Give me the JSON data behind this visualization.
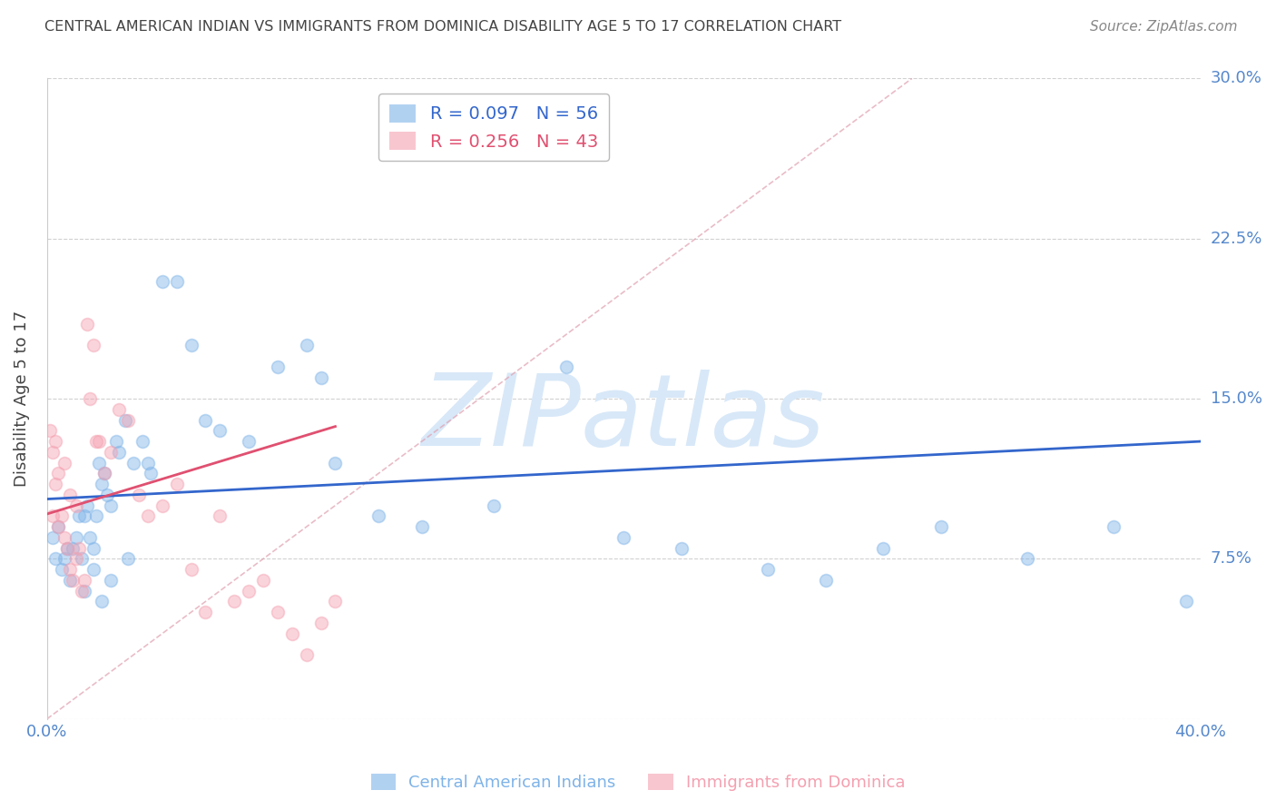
{
  "title": "CENTRAL AMERICAN INDIAN VS IMMIGRANTS FROM DOMINICA DISABILITY AGE 5 TO 17 CORRELATION CHART",
  "source": "Source: ZipAtlas.com",
  "ylabel": "Disability Age 5 to 17",
  "xmin": 0.0,
  "xmax": 0.4,
  "ymin": 0.0,
  "ymax": 0.3,
  "yticks": [
    0.0,
    0.075,
    0.15,
    0.225,
    0.3
  ],
  "ytick_labels": [
    "",
    "7.5%",
    "15.0%",
    "22.5%",
    "30.0%"
  ],
  "series1_name": "Central American Indians",
  "series1_color": "#7EB3E8",
  "series1_R": 0.097,
  "series1_N": 56,
  "series2_name": "Immigrants from Dominica",
  "series2_color": "#F4A0B0",
  "series2_R": 0.256,
  "series2_N": 43,
  "blue_line_color": "#3366CC",
  "pink_line_color": "#E05070",
  "diag_color": "#E0A0B0",
  "grid_color": "#CCCCCC",
  "background_color": "#FFFFFF",
  "watermark": "ZIPatlas",
  "watermark_color": "#D8E8F8",
  "title_color": "#444444",
  "axis_label_color": "#5588CC",
  "blue_trend_x0": 0.0,
  "blue_trend_x1": 0.4,
  "blue_trend_y0": 0.103,
  "blue_trend_y1": 0.13,
  "pink_trend_x0": 0.0,
  "pink_trend_x1": 0.1,
  "pink_trend_y0": 0.096,
  "pink_trend_y1": 0.137,
  "series1_x": [
    0.002,
    0.003,
    0.004,
    0.005,
    0.006,
    0.007,
    0.008,
    0.009,
    0.01,
    0.011,
    0.012,
    0.013,
    0.014,
    0.015,
    0.016,
    0.017,
    0.018,
    0.019,
    0.02,
    0.021,
    0.022,
    0.024,
    0.025,
    0.027,
    0.03,
    0.033,
    0.036,
    0.04,
    0.045,
    0.05,
    0.055,
    0.06,
    0.07,
    0.08,
    0.09,
    0.095,
    0.1,
    0.115,
    0.13,
    0.155,
    0.18,
    0.2,
    0.22,
    0.25,
    0.27,
    0.29,
    0.31,
    0.34,
    0.37,
    0.395,
    0.013,
    0.016,
    0.019,
    0.022,
    0.028,
    0.035
  ],
  "series1_y": [
    0.085,
    0.075,
    0.09,
    0.07,
    0.075,
    0.08,
    0.065,
    0.08,
    0.085,
    0.095,
    0.075,
    0.095,
    0.1,
    0.085,
    0.08,
    0.095,
    0.12,
    0.11,
    0.115,
    0.105,
    0.1,
    0.13,
    0.125,
    0.14,
    0.12,
    0.13,
    0.115,
    0.205,
    0.205,
    0.175,
    0.14,
    0.135,
    0.13,
    0.165,
    0.175,
    0.16,
    0.12,
    0.095,
    0.09,
    0.1,
    0.165,
    0.085,
    0.08,
    0.07,
    0.065,
    0.08,
    0.09,
    0.075,
    0.09,
    0.055,
    0.06,
    0.07,
    0.055,
    0.065,
    0.075,
    0.12
  ],
  "series2_x": [
    0.001,
    0.002,
    0.003,
    0.003,
    0.004,
    0.005,
    0.006,
    0.007,
    0.008,
    0.009,
    0.01,
    0.011,
    0.012,
    0.013,
    0.014,
    0.015,
    0.016,
    0.017,
    0.018,
    0.02,
    0.022,
    0.025,
    0.028,
    0.032,
    0.035,
    0.04,
    0.045,
    0.05,
    0.055,
    0.06,
    0.065,
    0.07,
    0.075,
    0.08,
    0.085,
    0.09,
    0.095,
    0.1,
    0.002,
    0.004,
    0.006,
    0.008,
    0.01
  ],
  "series2_y": [
    0.135,
    0.125,
    0.13,
    0.11,
    0.115,
    0.095,
    0.085,
    0.08,
    0.07,
    0.065,
    0.075,
    0.08,
    0.06,
    0.065,
    0.185,
    0.15,
    0.175,
    0.13,
    0.13,
    0.115,
    0.125,
    0.145,
    0.14,
    0.105,
    0.095,
    0.1,
    0.11,
    0.07,
    0.05,
    0.095,
    0.055,
    0.06,
    0.065,
    0.05,
    0.04,
    0.03,
    0.045,
    0.055,
    0.095,
    0.09,
    0.12,
    0.105,
    0.1
  ]
}
